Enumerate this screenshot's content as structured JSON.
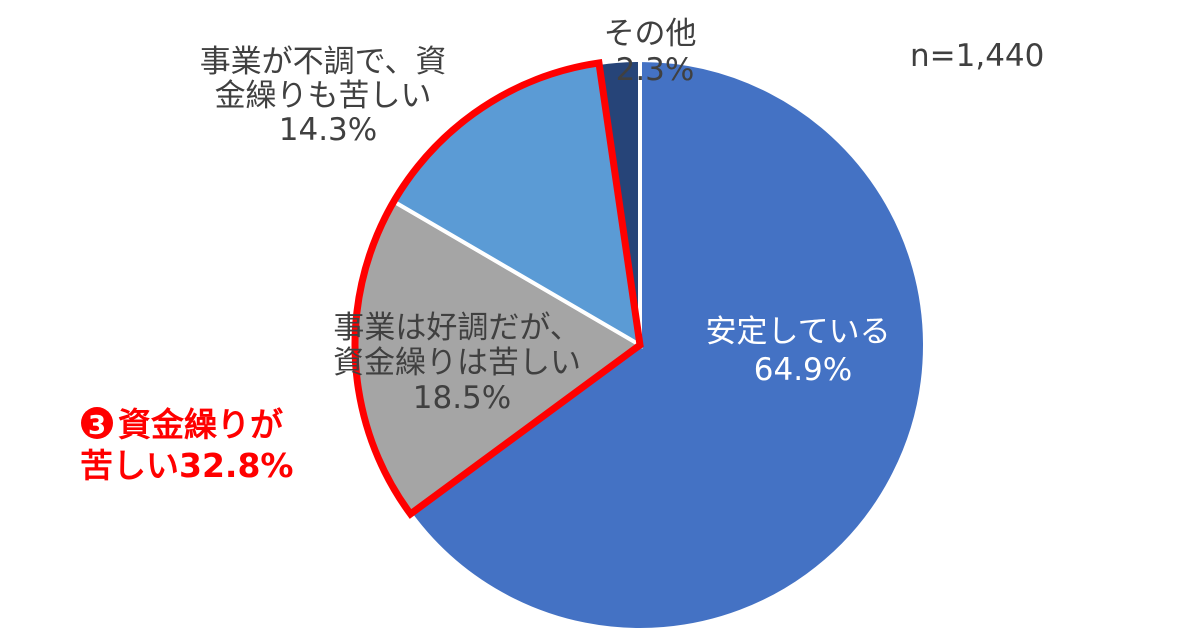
{
  "chart_data": {
    "type": "pie",
    "sample_size": "n=1,440",
    "slices": [
      {
        "label_lines": [
          "安定している"
        ],
        "value": 64.9,
        "value_text": "64.9%",
        "color": "#4472C4"
      },
      {
        "label_lines": [
          "事業は好調だが、",
          "資金繰りは苦しい"
        ],
        "value": 18.5,
        "value_text": "18.5%",
        "color": "#A5A5A5"
      },
      {
        "label_lines": [
          "事業が不調で、資",
          "金繰りも苦しい"
        ],
        "value": 14.3,
        "value_text": "14.3%",
        "color": "#5B9BD5"
      },
      {
        "label_lines": [
          "その他"
        ],
        "value": 2.3,
        "value_text": "2.3%",
        "color": "#264478"
      }
    ],
    "highlight": {
      "marker": "❸",
      "lines": [
        "資金繰りが",
        "苦しい32.8%"
      ],
      "color": "#FF0000"
    }
  }
}
